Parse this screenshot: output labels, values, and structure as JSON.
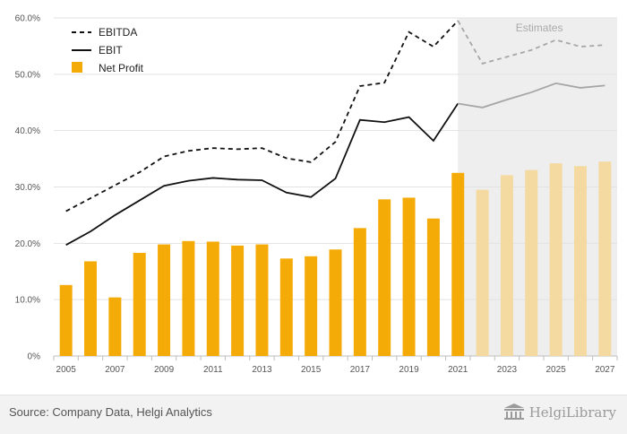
{
  "chart_data": {
    "type": "bar",
    "x": [
      2005,
      2006,
      2007,
      2008,
      2009,
      2010,
      2011,
      2012,
      2013,
      2014,
      2015,
      2016,
      2017,
      2018,
      2019,
      2020,
      2021,
      2022,
      2023,
      2024,
      2025,
      2026,
      2027
    ],
    "x_tick_labels": [
      "2005",
      "2007",
      "2009",
      "2011",
      "2013",
      "2015",
      "2017",
      "2019",
      "2021",
      "2023",
      "2025",
      "2027"
    ],
    "y_tick_labels": [
      "0%",
      "10.0%",
      "20.0%",
      "30.0%",
      "40.0%",
      "50.0%",
      "60.0%"
    ],
    "ylim": [
      0,
      60
    ],
    "estimates_from": 2022,
    "estimates_label": "Estimates",
    "grid": true,
    "legend_position": "top-left",
    "series": [
      {
        "name": "EBITDA",
        "type": "line",
        "style": "dashed",
        "color": "#111111",
        "estimate_color": "#a6a6a6",
        "values": [
          25.7,
          28.0,
          30.3,
          32.6,
          35.4,
          36.4,
          36.9,
          36.7,
          36.9,
          35.1,
          34.4,
          38.0,
          47.9,
          48.5,
          57.5,
          54.9,
          59.5,
          51.9,
          53.1,
          54.3,
          56.1,
          54.9,
          55.2
        ]
      },
      {
        "name": "EBIT",
        "type": "line",
        "style": "solid",
        "color": "#111111",
        "estimate_color": "#a6a6a6",
        "values": [
          19.7,
          22.1,
          25.0,
          27.6,
          30.2,
          31.1,
          31.6,
          31.3,
          31.2,
          29.0,
          28.2,
          31.5,
          41.9,
          41.5,
          42.4,
          38.2,
          44.8,
          44.1,
          45.5,
          46.8,
          48.4,
          47.6,
          48.0
        ]
      },
      {
        "name": "Net Profit",
        "type": "bar",
        "color": "#f5ab07",
        "estimate_color": "#f4d9a1",
        "values": [
          12.6,
          16.8,
          10.4,
          18.3,
          19.8,
          20.4,
          20.3,
          19.6,
          19.8,
          17.3,
          17.7,
          18.9,
          22.7,
          27.8,
          28.1,
          24.4,
          32.5,
          29.5,
          32.1,
          33.0,
          34.2,
          33.7,
          34.5
        ]
      }
    ]
  },
  "footer": {
    "source": "Source: Company Data, Helgi Analytics",
    "brand": "HelgiLibrary"
  },
  "colors": {
    "bar": "#f5ab07",
    "bar_estimate": "#f4d9a1",
    "line": "#111111",
    "line_estimate": "#a6a6a6",
    "estimate_band": "#eeeeee"
  }
}
